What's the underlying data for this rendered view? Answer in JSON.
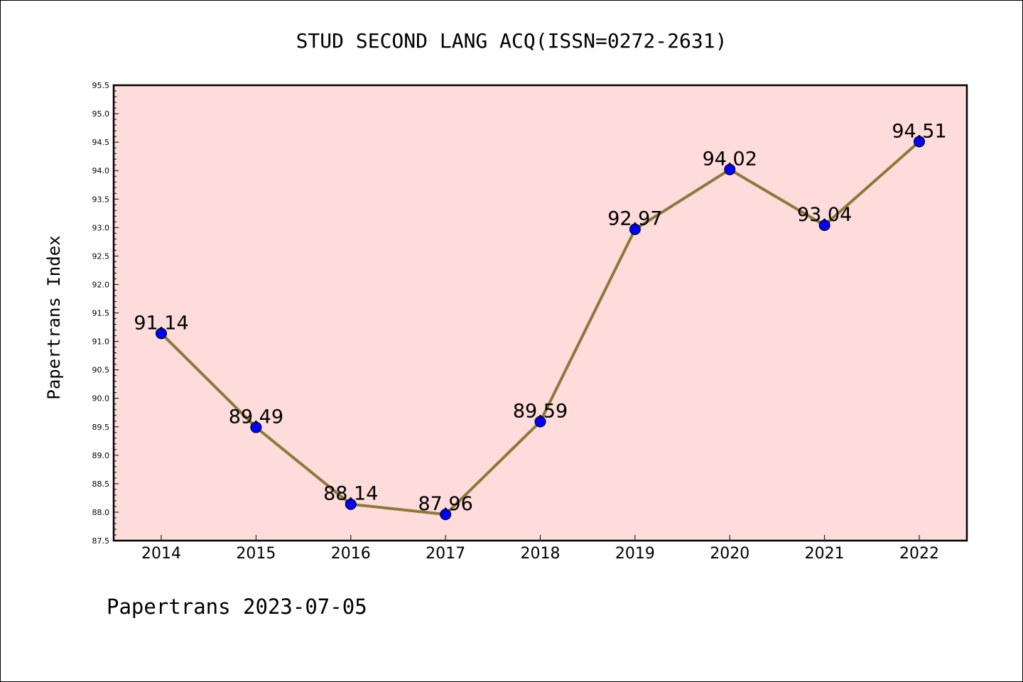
{
  "chart_data": {
    "type": "line",
    "title": "STUD SECOND LANG ACQ(ISSN=0272-2631)",
    "ylabel": "Papertrans Index",
    "xlabel": "",
    "footer": "Papertrans 2023-07-05",
    "x": [
      "2014",
      "2015",
      "2016",
      "2017",
      "2018",
      "2019",
      "2020",
      "2021",
      "2022"
    ],
    "series": [
      {
        "values": [
          91.14,
          89.49,
          88.14,
          87.96,
          89.59,
          92.97,
          94.02,
          93.04,
          94.51
        ],
        "labels": [
          "91.14",
          "89.49",
          "88.14",
          "87.96",
          "89.59",
          "92.97",
          "94.02",
          "93.04",
          "94.51"
        ],
        "line_color": "#8b7a3a",
        "marker_color": "#0000ff"
      }
    ],
    "ylim": [
      87.5,
      95.5
    ],
    "yticks": [
      "87.5",
      "88.0",
      "88.5",
      "89.0",
      "89.5",
      "90.0",
      "90.5",
      "91.0",
      "91.5",
      "92.0",
      "92.5",
      "93.0",
      "93.5",
      "94.0",
      "94.5",
      "95.0",
      "95.5"
    ],
    "plot_background": "#fddcdb",
    "grid": false,
    "legend": "none"
  }
}
